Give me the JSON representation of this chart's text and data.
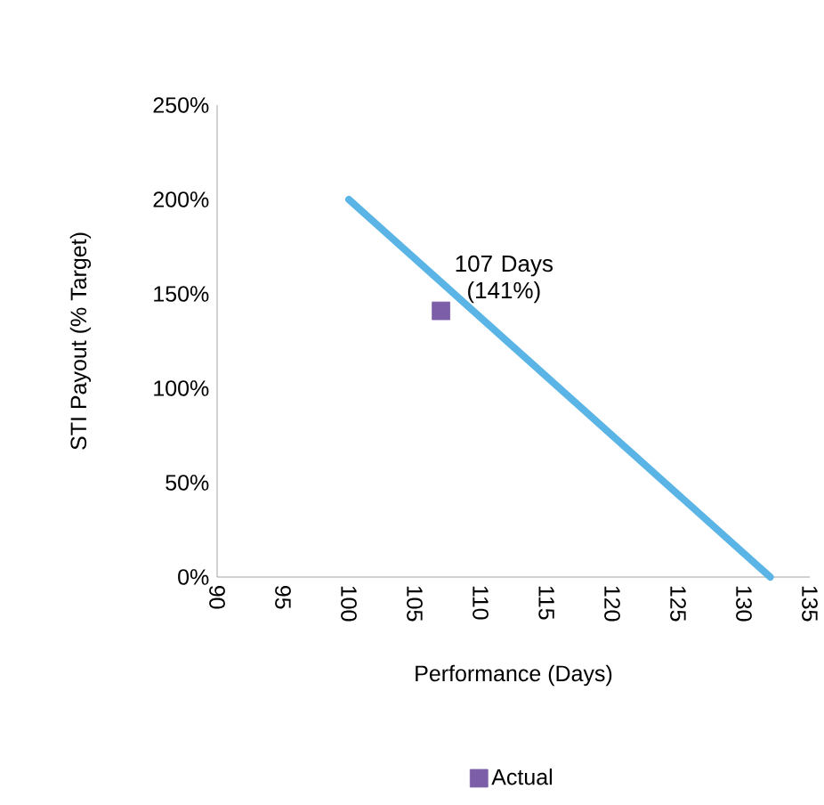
{
  "chart_data": {
    "type": "line",
    "xlabel": "Performance (Days)",
    "ylabel": "STI Payout (% Target)",
    "xlim": [
      90,
      135
    ],
    "xticks": [
      90,
      95,
      100,
      105,
      110,
      115,
      120,
      125,
      130,
      135
    ],
    "ylim": [
      0,
      250
    ],
    "yticks": [
      {
        "value": 0,
        "label": "0%"
      },
      {
        "value": 50,
        "label": "50%"
      },
      {
        "value": 100,
        "label": "100%"
      },
      {
        "value": 150,
        "label": "150%"
      },
      {
        "value": 200,
        "label": "200%"
      },
      {
        "value": 250,
        "label": "250%"
      }
    ],
    "series": [
      {
        "color": "#5ab4e5",
        "x": [
          100,
          132
        ],
        "values": [
          200,
          0
        ]
      },
      {
        "type": "scatter",
        "name": "Actual",
        "color": "#7b5ea7",
        "x": [
          107
        ],
        "values": [
          141
        ],
        "marker": "square"
      }
    ],
    "annotations": [
      {
        "text": "107 Days (141%)",
        "x": 107,
        "y": 141
      }
    ],
    "legend": "bottom",
    "grid": false
  }
}
